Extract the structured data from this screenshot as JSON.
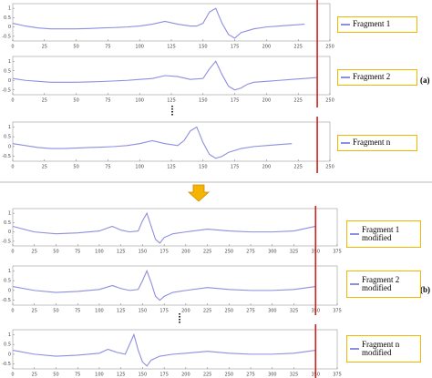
{
  "panel_labels": [
    "(a)",
    "(b)"
  ],
  "chart_data": [
    {
      "type": "line",
      "x": [
        0,
        10,
        20,
        30,
        40,
        50,
        60,
        70,
        80,
        90,
        100,
        110,
        120,
        130,
        140,
        145,
        150,
        155,
        160,
        165,
        170,
        175,
        180,
        190,
        200,
        210,
        220,
        230
      ],
      "series": [
        {
          "name": "Fragment 1",
          "color": "#8e8ee0",
          "values": [
            0.2,
            0.05,
            -0.05,
            -0.1,
            -0.1,
            -0.1,
            -0.08,
            -0.05,
            -0.03,
            0,
            0.05,
            0.15,
            0.3,
            0.15,
            0.05,
            0.05,
            0.2,
            0.8,
            1.0,
            0.2,
            -0.4,
            -0.6,
            -0.3,
            -0.1,
            0,
            0.05,
            0.1,
            0.15
          ]
        }
      ],
      "xlim": [
        0,
        250
      ],
      "xticks": [
        0,
        25,
        50,
        75,
        100,
        125,
        150,
        175,
        200,
        225,
        250
      ],
      "ylim": [
        -0.75,
        1.25
      ],
      "yticks": [
        -0.5,
        0,
        0.5,
        1
      ],
      "vline": 240,
      "vline_color": "#d0201c"
    },
    {
      "type": "line",
      "x": [
        0,
        10,
        20,
        30,
        40,
        50,
        60,
        70,
        80,
        90,
        100,
        110,
        120,
        130,
        140,
        150,
        155,
        160,
        165,
        170,
        175,
        180,
        185,
        190,
        200,
        210,
        220,
        230,
        240
      ],
      "series": [
        {
          "name": "Fragment 2",
          "color": "#8e8ee0",
          "values": [
            0.1,
            0,
            -0.05,
            -0.1,
            -0.1,
            -0.1,
            -0.08,
            -0.06,
            -0.03,
            0,
            0.05,
            0.1,
            0.25,
            0.2,
            0.05,
            0.1,
            0.6,
            1.0,
            0.3,
            -0.3,
            -0.5,
            -0.4,
            -0.2,
            -0.1,
            -0.05,
            0,
            0.05,
            0.1,
            0.15
          ]
        }
      ],
      "xlim": [
        0,
        250
      ],
      "xticks": [
        0,
        25,
        50,
        75,
        100,
        125,
        150,
        175,
        200,
        225,
        250
      ],
      "ylim": [
        -0.75,
        1.25
      ],
      "yticks": [
        -0.5,
        0,
        0.5,
        1
      ],
      "vline": 240,
      "vline_color": "#d0201c"
    },
    {
      "type": "line",
      "x": [
        0,
        10,
        20,
        30,
        40,
        50,
        60,
        70,
        80,
        90,
        100,
        110,
        120,
        130,
        135,
        140,
        145,
        150,
        155,
        160,
        165,
        170,
        180,
        190,
        200,
        210,
        220
      ],
      "series": [
        {
          "name": "Fragment n",
          "color": "#8e8ee0",
          "values": [
            0.15,
            0.05,
            -0.05,
            -0.1,
            -0.1,
            -0.08,
            -0.05,
            -0.03,
            0,
            0.05,
            0.15,
            0.3,
            0.15,
            0.05,
            0.3,
            0.8,
            1.0,
            0.2,
            -0.4,
            -0.6,
            -0.5,
            -0.3,
            -0.1,
            0,
            0.05,
            0.1,
            0.15
          ]
        }
      ],
      "xlim": [
        0,
        250
      ],
      "xticks": [
        0,
        25,
        50,
        75,
        100,
        125,
        150,
        175,
        200,
        225,
        250
      ],
      "ylim": [
        -0.75,
        1.25
      ],
      "yticks": [
        -0.5,
        0,
        0.5,
        1
      ],
      "vline": 240,
      "vline_color": "#d0201c"
    },
    {
      "type": "line",
      "x": [
        0,
        25,
        50,
        75,
        100,
        115,
        125,
        135,
        145,
        150,
        155,
        160,
        165,
        170,
        175,
        185,
        200,
        225,
        250,
        275,
        300,
        325,
        350
      ],
      "series": [
        {
          "name": "Fragment 1 modified",
          "color": "#8e8ee0",
          "values": [
            0.3,
            0,
            -0.1,
            -0.05,
            0.05,
            0.3,
            0.1,
            0,
            0.05,
            0.6,
            1.0,
            0.3,
            -0.4,
            -0.6,
            -0.3,
            -0.1,
            0,
            0.15,
            0.05,
            0,
            0,
            0.05,
            0.3
          ]
        }
      ],
      "xlim": [
        0,
        375
      ],
      "xticks": [
        0,
        25,
        50,
        75,
        100,
        125,
        150,
        175,
        200,
        225,
        250,
        275,
        300,
        325,
        350,
        375
      ],
      "ylim": [
        -0.75,
        1.25
      ],
      "yticks": [
        -0.5,
        0,
        0.5,
        1
      ],
      "vline": 350,
      "vline_color": "#d0201c"
    },
    {
      "type": "line",
      "x": [
        0,
        25,
        50,
        75,
        100,
        115,
        125,
        135,
        145,
        150,
        155,
        160,
        165,
        170,
        175,
        185,
        200,
        225,
        250,
        275,
        300,
        325,
        350
      ],
      "series": [
        {
          "name": "Fragment 2 modified",
          "color": "#8e8ee0",
          "values": [
            0.2,
            0,
            -0.1,
            -0.05,
            0.05,
            0.25,
            0.1,
            0,
            0.05,
            0.5,
            1.0,
            0.4,
            -0.3,
            -0.5,
            -0.3,
            -0.1,
            0,
            0.15,
            0.05,
            0,
            0,
            0.05,
            0.2
          ]
        }
      ],
      "xlim": [
        0,
        375
      ],
      "xticks": [
        0,
        25,
        50,
        75,
        100,
        125,
        150,
        175,
        200,
        225,
        250,
        275,
        300,
        325,
        350,
        375
      ],
      "ylim": [
        -0.75,
        1.25
      ],
      "yticks": [
        -0.5,
        0,
        0.5,
        1
      ],
      "vline": 350,
      "vline_color": "#d0201c"
    },
    {
      "type": "line",
      "x": [
        0,
        25,
        50,
        75,
        100,
        110,
        120,
        130,
        135,
        140,
        145,
        150,
        155,
        160,
        170,
        185,
        200,
        225,
        250,
        275,
        300,
        325,
        350
      ],
      "series": [
        {
          "name": "Fragment n modified",
          "color": "#8e8ee0",
          "values": [
            0.2,
            0,
            -0.1,
            -0.05,
            0.05,
            0.25,
            0.1,
            0,
            0.5,
            1.0,
            0.2,
            -0.4,
            -0.6,
            -0.3,
            -0.1,
            0,
            0.05,
            0.15,
            0.05,
            0,
            0,
            0.05,
            0.2
          ]
        }
      ],
      "xlim": [
        0,
        375
      ],
      "xticks": [
        0,
        25,
        50,
        75,
        100,
        125,
        150,
        175,
        200,
        225,
        250,
        275,
        300,
        325,
        350,
        375
      ],
      "ylim": [
        -0.75,
        1.25
      ],
      "yticks": [
        -0.5,
        0,
        0.5,
        1
      ],
      "vline": 350,
      "vline_color": "#d0201c"
    }
  ]
}
